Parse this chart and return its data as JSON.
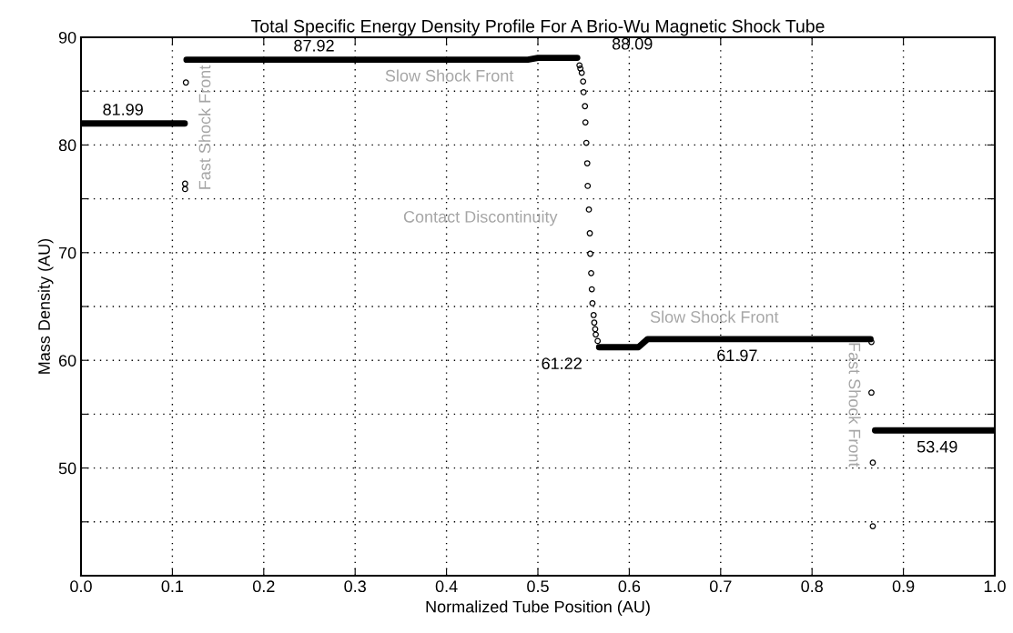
{
  "chart_data": {
    "type": "scatter",
    "title": "Total Specific Energy Density Profile For A Brio-Wu Magnetic Shock Tube",
    "xlabel": "Normalized Tube Position (AU)",
    "ylabel": "Mass Density (AU)",
    "xlim": [
      0,
      1
    ],
    "xticks": [
      {
        "value": 0,
        "label": "0.0"
      },
      0.1,
      0.2,
      0.3,
      0.4,
      0.5,
      0.6,
      0.7,
      0.8,
      0.9,
      {
        "value": 1,
        "label": "1.0"
      }
    ],
    "ylim": [
      40,
      90
    ],
    "yticks": [
      {
        "value": 45,
        "label": null
      },
      50,
      {
        "value": 55,
        "label": null
      },
      60,
      {
        "value": 65,
        "label": null
      },
      70,
      {
        "value": 75,
        "label": null
      },
      80,
      {
        "value": 85,
        "label": null
      },
      90
    ],
    "grid": true,
    "series": [
      {
        "type": "line",
        "color": "#000000",
        "marker": "none",
        "line_style": "solid",
        "x": [
          0,
          0.1135,
          0.114,
          0.1155,
          0.489,
          0.5,
          0.543,
          0.544,
          0.567,
          0.61,
          0.62,
          0.864,
          0.865,
          0.869,
          1.0
        ],
        "values": [
          81.99,
          81.99,
          null,
          87.92,
          87.92,
          88.09,
          88.09,
          null,
          61.22,
          61.22,
          61.97,
          61.97,
          null,
          53.49,
          53.49
        ]
      },
      {
        "type": "scatter",
        "color": "#000000",
        "marker": "circle",
        "x": [
          0.1139,
          0.1139,
          0.1148,
          0.5455,
          0.5465,
          0.548,
          0.5495,
          0.55,
          0.5515,
          0.552,
          0.553,
          0.554,
          0.5545,
          0.5558,
          0.5568,
          0.5573,
          0.5583,
          0.559,
          0.5597,
          0.561,
          0.5617,
          0.5627,
          0.5633,
          0.5654,
          0.865,
          0.865,
          0.8665,
          0.8665
        ],
        "values": [
          75.9,
          76.4,
          85.8,
          87.4,
          87.1,
          86.7,
          85.9,
          84.9,
          83.6,
          82.1,
          80.2,
          78.3,
          76.2,
          74.0,
          71.8,
          69.9,
          68.1,
          66.6,
          65.3,
          64.2,
          63.5,
          62.9,
          62.4,
          61.8,
          61.7,
          57.0,
          50.5,
          44.6
        ]
      }
    ],
    "annotations": [
      {
        "text": "81.99",
        "x": 0.046,
        "y": 81.99
      },
      {
        "text": "87.92",
        "x": 0.255,
        "y": 87.92
      },
      {
        "text": "88.09",
        "x": 0.53,
        "y": 88.09
      },
      {
        "text": "61.22",
        "x": 0.58,
        "y": 61.22
      },
      {
        "text": "61.97",
        "x": 0.718,
        "y": 61.97
      },
      {
        "text": "53.49",
        "x": 0.937,
        "y": 53.49
      },
      "Slow Shock Front",
      "Contact Discontinuity",
      "Slow Shock Front",
      "Fast Shock Front",
      "Fast Shock Front"
    ]
  }
}
